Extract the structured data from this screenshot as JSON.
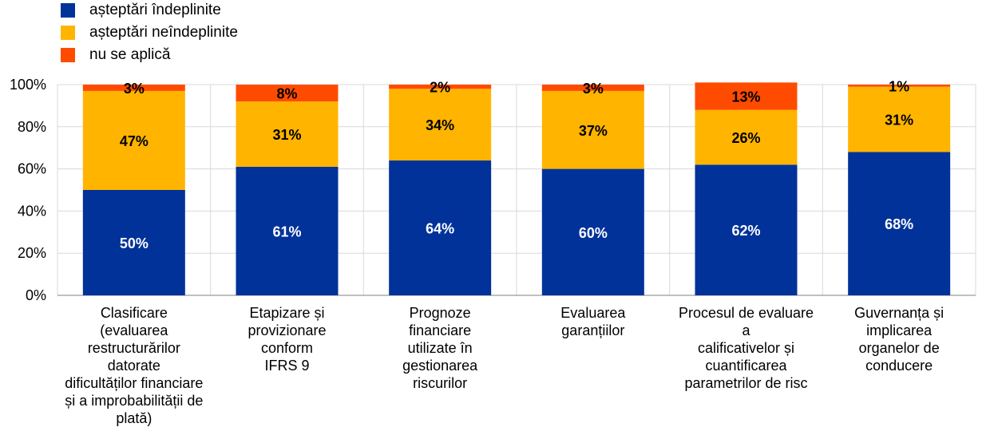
{
  "chart_data": {
    "type": "bar",
    "stacked": true,
    "categories": [
      [
        "Clasificare",
        "(evaluarea",
        "restructurărilor",
        "datorate",
        "dificultăților financiare",
        "și a improbabilității de",
        "plată)"
      ],
      [
        "Etapizare și",
        "provizionare",
        "conform",
        "IFRS 9"
      ],
      [
        "Prognoze",
        "financiare",
        "utilizate în",
        "gestionarea",
        "riscurilor"
      ],
      [
        "Evaluarea",
        "garanțiilor"
      ],
      [
        "Procesul de evaluare",
        "a",
        "calificativelor și",
        "cuantificarea",
        "parametrilor de risc"
      ],
      [
        "Guvernanța și",
        "implicarea",
        "organelor de",
        "conducere"
      ]
    ],
    "series": [
      {
        "name": "așteptări îndeplinite",
        "color": "#003299",
        "label_color": "#ffffff",
        "values": [
          50,
          61,
          64,
          60,
          62,
          68
        ]
      },
      {
        "name": "așteptări neîndeplinite",
        "color": "#FFB400",
        "label_color": "#000000",
        "values": [
          47,
          31,
          34,
          37,
          26,
          31
        ]
      },
      {
        "name": "nu se aplică",
        "color": "#FF4B00",
        "label_color": "#000000",
        "values": [
          3,
          8,
          2,
          3,
          13,
          1
        ]
      }
    ],
    "ylim": [
      0,
      100
    ],
    "yticks": [
      "0%",
      "20%",
      "40%",
      "60%",
      "80%",
      "100%"
    ],
    "grid": true,
    "legend_position": "top-left"
  }
}
